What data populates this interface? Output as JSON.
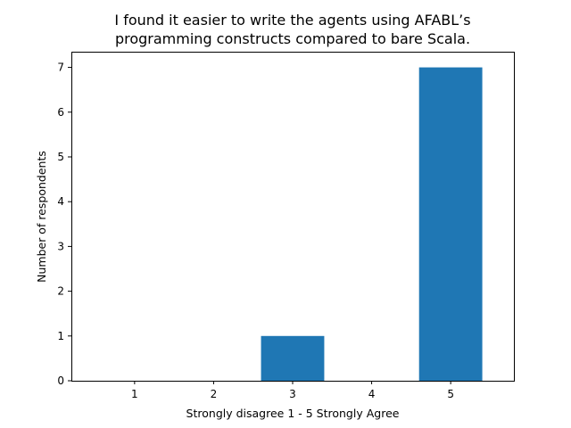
{
  "chart_data": {
    "type": "bar",
    "title_lines": [
      "I found it easier to write the agents using AFABL’s",
      "programming constructs compared to bare Scala."
    ],
    "xlabel": "Strongly disagree 1 - 5  Strongly Agree",
    "ylabel": "Number of respondents",
    "categories": [
      "1",
      "2",
      "3",
      "4",
      "5"
    ],
    "values": [
      0,
      0,
      1,
      0,
      7
    ],
    "ylim": [
      0,
      7.35
    ],
    "yticks": [
      "0",
      "1",
      "2",
      "3",
      "4",
      "5",
      "6",
      "7"
    ],
    "bar_color": "#1f77b4",
    "grid": false,
    "legend": "none"
  }
}
